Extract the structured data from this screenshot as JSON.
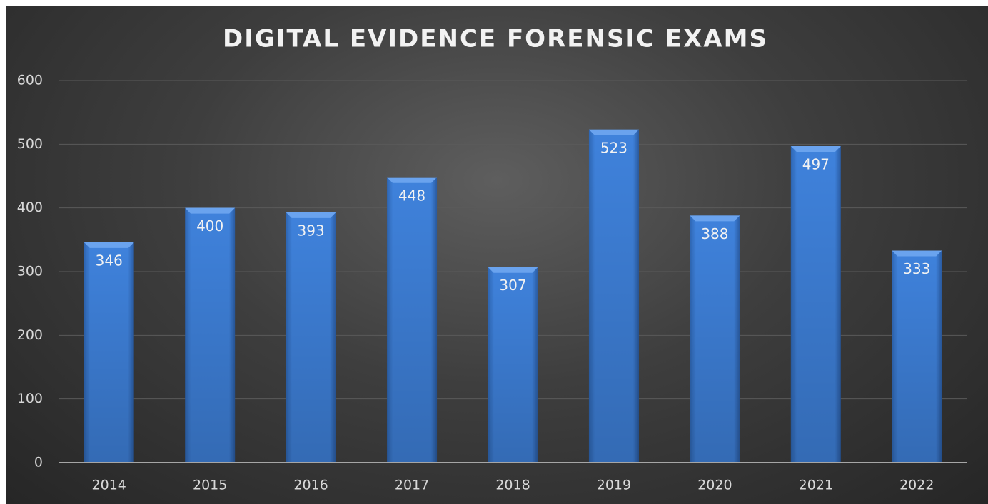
{
  "chart_data": {
    "type": "bar",
    "title": "DIGITAL EVIDENCE FORENSIC EXAMS",
    "categories": [
      "2014",
      "2015",
      "2016",
      "2017",
      "2018",
      "2019",
      "2020",
      "2021",
      "2022"
    ],
    "values": [
      346,
      400,
      393,
      448,
      307,
      523,
      388,
      497,
      333
    ],
    "color": "#3d7fd6",
    "ylim": [
      0,
      600
    ],
    "yticks": [
      0,
      100,
      200,
      300,
      400,
      500,
      600
    ],
    "grid": true
  }
}
